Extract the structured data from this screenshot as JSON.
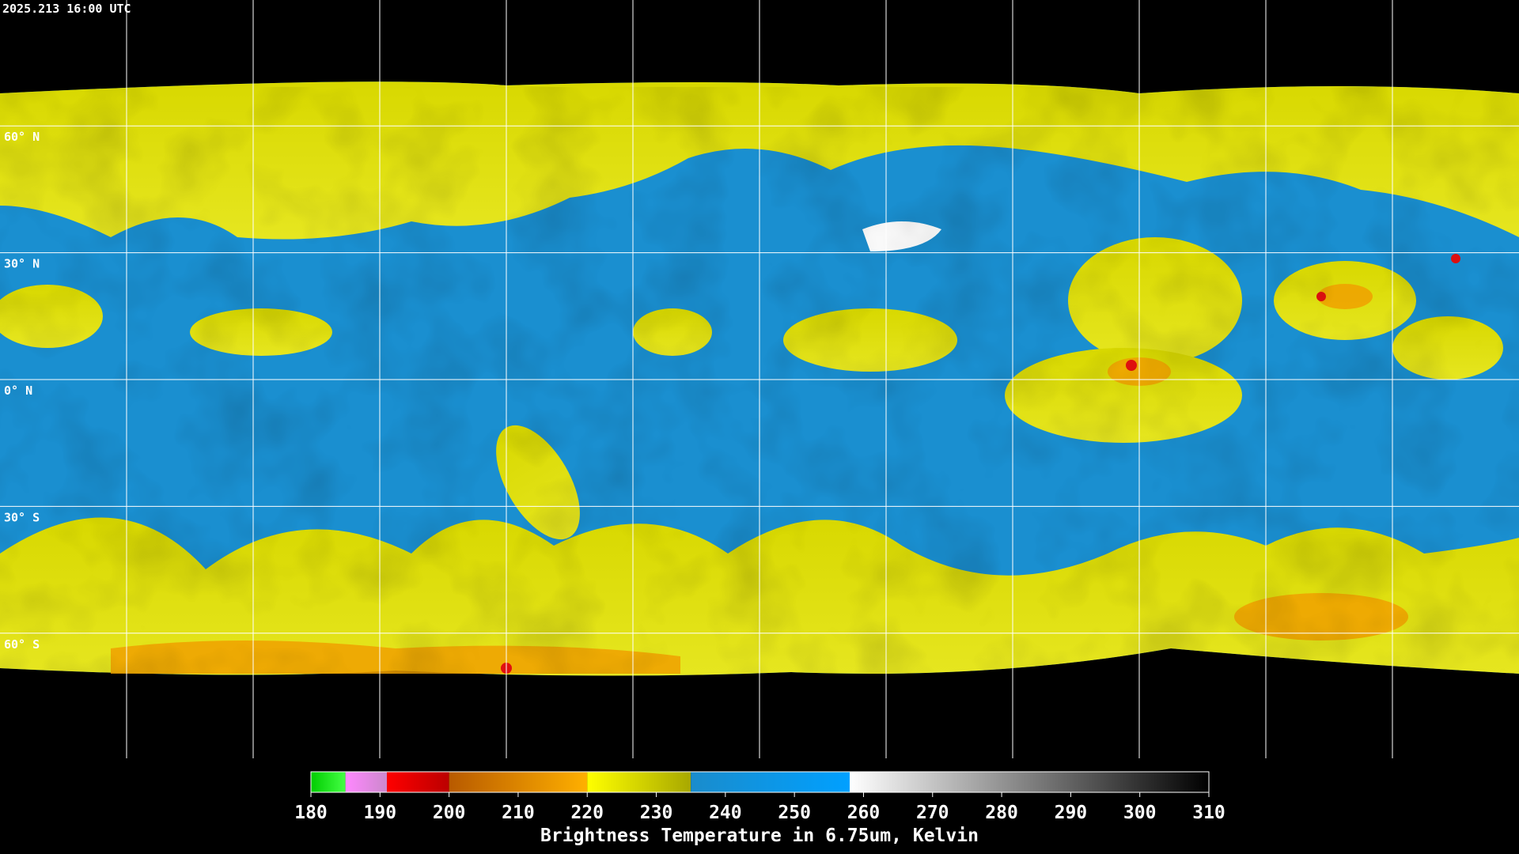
{
  "timestamp": "2025.213 16:00 UTC",
  "lat_labels": [
    "60° N",
    "30° N",
    "0° N",
    "30° S",
    "60° S"
  ],
  "colorbar": {
    "label": "Brightness Temperature in 6.75um, Kelvin",
    "range": [
      180,
      310
    ],
    "ticks": [
      180,
      190,
      200,
      210,
      220,
      230,
      240,
      250,
      260,
      270,
      280,
      290,
      300,
      310
    ],
    "segments": [
      {
        "from": 180,
        "to": 185,
        "start": "#00cc00",
        "end": "#44ff44"
      },
      {
        "from": 185,
        "to": 191,
        "start": "#ff88ff",
        "end": "#cc88cc"
      },
      {
        "from": 191,
        "to": 200,
        "start": "#ff0000",
        "end": "#bb0000"
      },
      {
        "from": 200,
        "to": 220,
        "start": "#b85a00",
        "end": "#ffb000"
      },
      {
        "from": 220,
        "to": 235,
        "start": "#ffff00",
        "end": "#a8a800"
      },
      {
        "from": 235,
        "to": 258,
        "start": "#1a8ccc",
        "end": "#00a0ff"
      },
      {
        "from": 258,
        "to": 310,
        "start": "#ffffff",
        "end": "#000000"
      }
    ]
  }
}
